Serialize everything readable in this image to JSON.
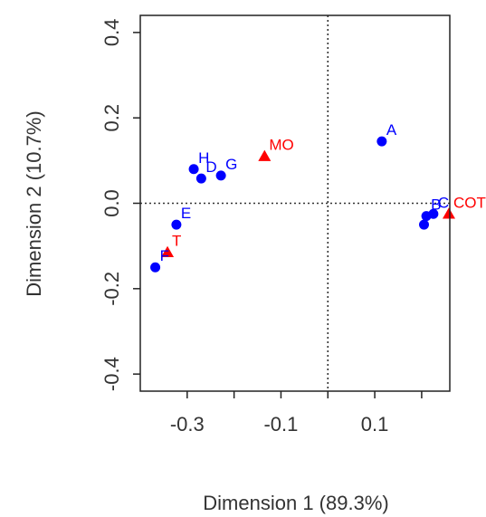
{
  "chart_data": {
    "type": "scatter",
    "xlabel": "Dimension 1 (89.3%)",
    "ylabel": "Dimension 2 (10.7%)",
    "xlim": [
      -0.4,
      0.26
    ],
    "ylim": [
      -0.44,
      0.44
    ],
    "x_ticks": [
      -0.3,
      -0.2,
      -0.1,
      0.0,
      0.1,
      0.2
    ],
    "x_tick_labels": [
      "-0.3",
      "",
      "-0.1",
      "",
      "0.1",
      ""
    ],
    "y_ticks": [
      -0.4,
      -0.2,
      0.0,
      0.2,
      0.4
    ],
    "y_tick_labels": [
      "-0.4",
      "-0.2",
      "0.0",
      "0.2",
      "0.4"
    ],
    "reference_lines": {
      "x": 0,
      "y": 0,
      "style": "dotted"
    },
    "colors": {
      "rows": "#0000ff",
      "columns": "#ff0000"
    },
    "series": [
      {
        "marker": "circle",
        "color": "#0000ff",
        "points": [
          {
            "label": "A",
            "x": 0.115,
            "y": 0.145
          },
          {
            "label": "C",
            "x": 0.225,
            "y": -0.025
          },
          {
            "label": "B",
            "x": 0.21,
            "y": -0.03
          },
          {
            "label": "",
            "x": 0.205,
            "y": -0.05
          },
          {
            "label": "H",
            "x": -0.286,
            "y": 0.08
          },
          {
            "label": "D",
            "x": -0.27,
            "y": 0.058
          },
          {
            "label": "G",
            "x": -0.228,
            "y": 0.065
          },
          {
            "label": "E",
            "x": -0.323,
            "y": -0.05
          },
          {
            "label": "F",
            "x": -0.368,
            "y": -0.15
          }
        ]
      },
      {
        "marker": "triangle",
        "color": "#ff0000",
        "points": [
          {
            "label": "MO",
            "x": -0.135,
            "y": 0.11
          },
          {
            "label": "COT",
            "x": 0.258,
            "y": -0.025
          },
          {
            "label": "T",
            "x": -0.342,
            "y": -0.115
          }
        ]
      }
    ]
  }
}
